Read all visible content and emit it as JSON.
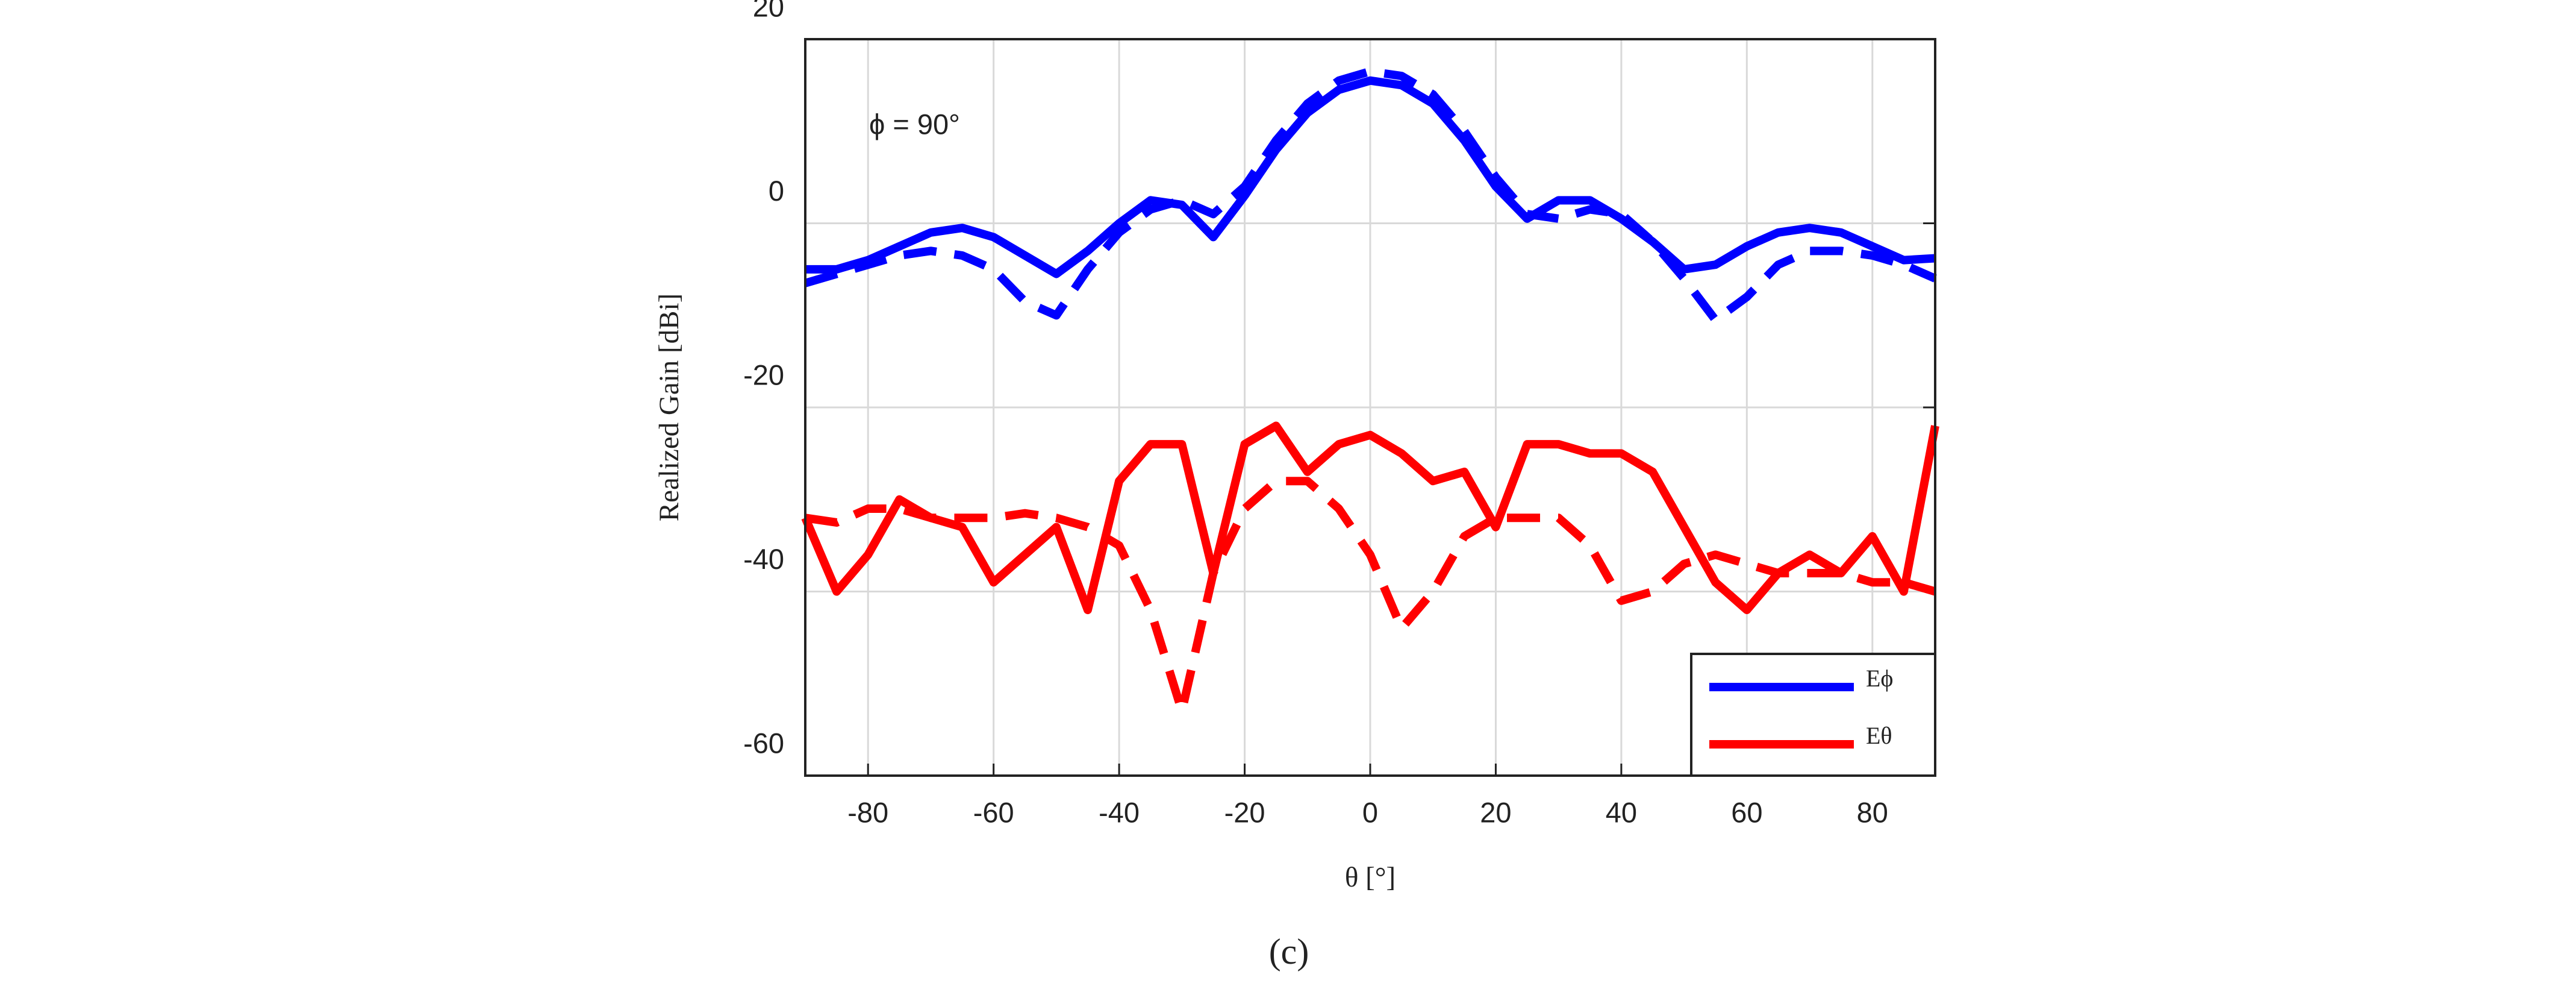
{
  "chart_data": {
    "type": "line",
    "annotation": "ϕ = 90°",
    "xlabel": "θ [°]",
    "ylabel": "Realized Gain [dBi]",
    "caption": "(c)",
    "xlim": [
      -90,
      90
    ],
    "ylim": [
      -60,
      20
    ],
    "xticks": [
      -80,
      -60,
      -40,
      -20,
      0,
      20,
      40,
      60,
      80
    ],
    "yticks": [
      -60,
      -40,
      -20,
      0,
      20
    ],
    "grid": true,
    "legend": "lower right",
    "x": [
      -90,
      -85,
      -80,
      -75,
      -70,
      -65,
      -60,
      -55,
      -50,
      -45,
      -40,
      -35,
      -30,
      -25,
      -20,
      -15,
      -10,
      -5,
      0,
      5,
      10,
      15,
      20,
      25,
      30,
      35,
      40,
      45,
      50,
      55,
      60,
      65,
      70,
      75,
      80,
      85,
      90
    ],
    "series": [
      {
        "name": "Eϕ",
        "color": "#0000ff",
        "dashed": false,
        "values": [
          -5,
          -5,
          -4,
          -2.5,
          -1,
          -0.5,
          -1.5,
          -3.5,
          -5.5,
          -3,
          0,
          2.5,
          2,
          -1.5,
          3,
          8,
          12,
          14.5,
          15.5,
          15,
          13,
          9,
          4,
          0.5,
          2.5,
          2.5,
          0.5,
          -2,
          -5,
          -4.5,
          -2.5,
          -1,
          -0.5,
          -1,
          -2.5,
          -4,
          -3.8
        ]
      },
      {
        "color": "#0000ff",
        "dashed": true,
        "values": [
          -6.5,
          -5.5,
          -4.5,
          -3.5,
          -3,
          -3.5,
          -5,
          -8.5,
          -10,
          -5,
          -1,
          1.5,
          2.5,
          1,
          4,
          9,
          13,
          15.5,
          16.5,
          16,
          14,
          10,
          5,
          1,
          0.5,
          1.5,
          1,
          -2,
          -6,
          -10.5,
          -8,
          -4.5,
          -3,
          -3,
          -3.5,
          -4.5,
          -6
        ]
      },
      {
        "name": "Eθ",
        "color": "#ff0000",
        "dashed": false,
        "values": [
          -32,
          -40,
          -36,
          -30,
          -32,
          -33,
          -39,
          -36,
          -33,
          -42,
          -28,
          -24,
          -24,
          -38,
          -24,
          -22,
          -27,
          -24,
          -23,
          -25,
          -28,
          -27,
          -33,
          -24,
          -24,
          -25,
          -25,
          -27,
          -33,
          -39,
          -42,
          -38,
          -36,
          -38,
          -34,
          -40,
          -22
        ]
      },
      {
        "color": "#ff0000",
        "dashed": true,
        "values": [
          -32,
          -32.5,
          -31,
          -31,
          -32,
          -32,
          -32,
          -31.5,
          -32,
          -33,
          -35,
          -42,
          -53,
          -38,
          -31,
          -28,
          -28,
          -31,
          -36,
          -44,
          -40,
          -34,
          -32,
          -32,
          -32,
          -35,
          -41,
          -40,
          -37,
          -36,
          -37,
          -38,
          -38,
          -38,
          -39,
          -39,
          -40
        ]
      }
    ]
  }
}
